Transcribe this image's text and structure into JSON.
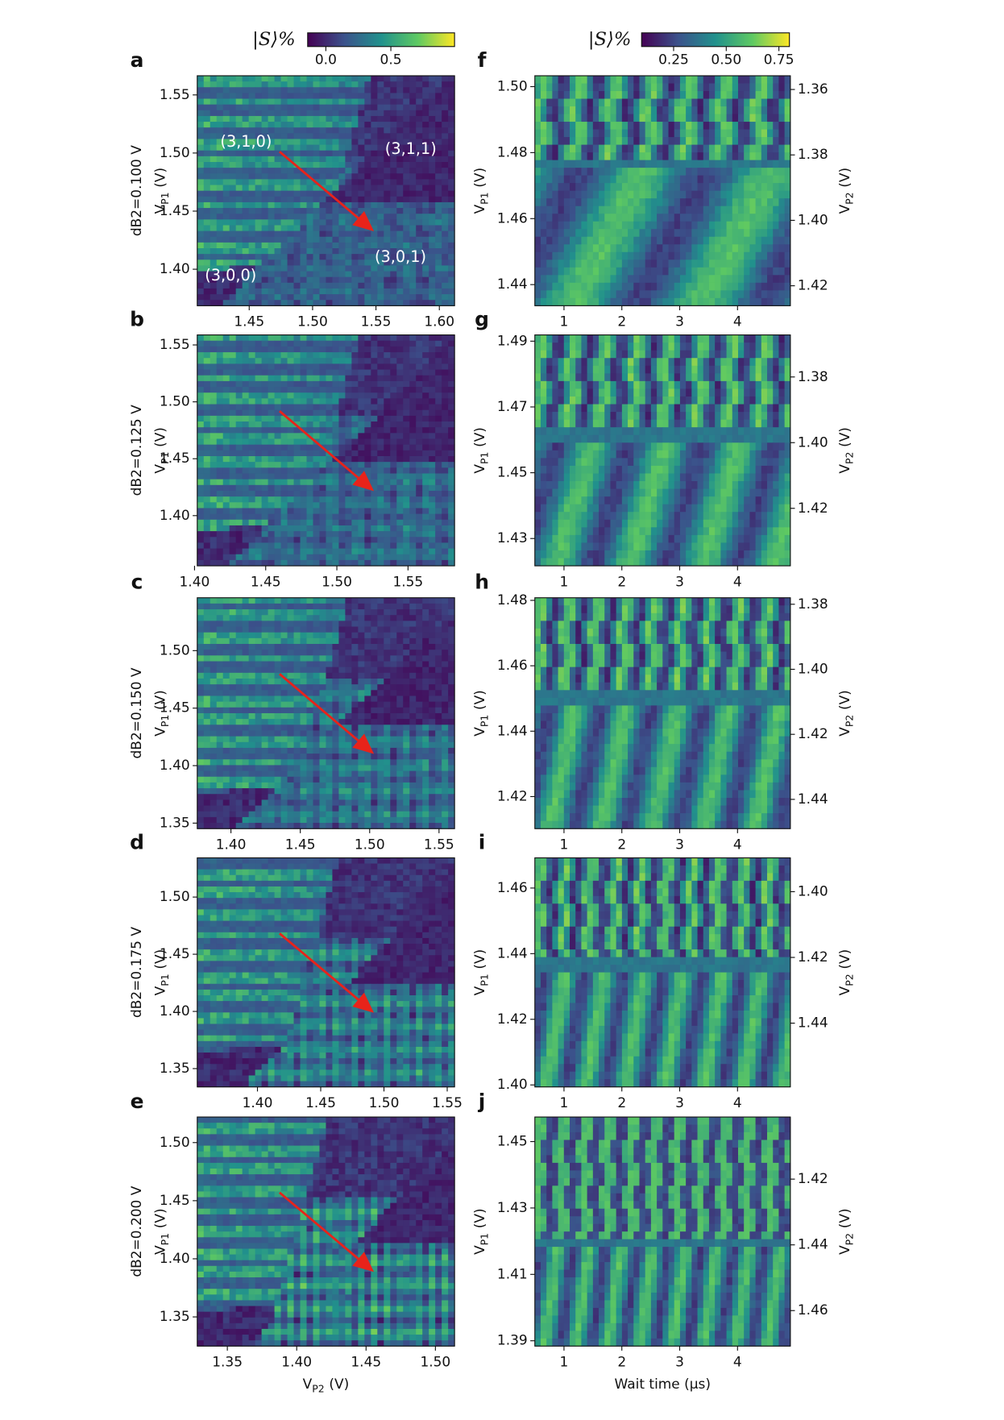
{
  "colorbars": [
    {
      "label": "|S⟩%",
      "clim": [
        -0.14,
        0.99
      ],
      "ticks": [
        {
          "value": 0,
          "label": "0.0"
        },
        0.5
      ]
    },
    {
      "label": "|S⟩%",
      "clim": [
        0.098,
        0.8
      ],
      "ticks": [
        0.25,
        {
          "value": 0.5,
          "label": "0.50"
        },
        0.75
      ]
    }
  ],
  "chart_data": [
    {
      "type": "heatmap",
      "panel_label": "a",
      "side_label": "dB2=0.100 V",
      "ylabel": [
        "V",
        "P1",
        "(V)"
      ],
      "xlim": [
        1.409,
        1.612
      ],
      "xticks": [
        1.45,
        {
          "value": 1.5,
          "label": "1.50"
        },
        1.55,
        {
          "value": 1.6,
          "label": "1.60"
        }
      ],
      "ylim": [
        1.3686,
        1.5665
      ],
      "yticks": [
        1.55,
        {
          "value": 1.5,
          "label": "1.50"
        },
        1.45,
        {
          "value": 1.4,
          "label": "1.40"
        }
      ],
      "annotations": [
        "(3,1,0)",
        "(3,1,1)",
        "(3,0,1)",
        "(3,0,0)"
      ]
    },
    {
      "type": "heatmap",
      "panel_label": "b",
      "side_label": "dB2=0.125 V",
      "ylabel": [
        "V",
        "P1",
        "(V)"
      ],
      "xlim": [
        1.4019,
        1.5827
      ],
      "xticks": [
        {
          "value": 1.4,
          "label": "1.40"
        },
        1.45,
        {
          "value": 1.5,
          "label": "1.50"
        },
        1.55
      ],
      "ylim": [
        1.3559,
        1.5588
      ],
      "yticks": [
        1.55,
        {
          "value": 1.5,
          "label": "1.50"
        },
        1.45,
        {
          "value": 1.4,
          "label": "1.40"
        }
      ]
    },
    {
      "type": "heatmap",
      "panel_label": "c",
      "side_label": "dB2=0.150 V",
      "ylabel": [
        "V",
        "P1",
        "(V)"
      ],
      "xlim": [
        1.3757,
        1.5612
      ],
      "xticks": [
        {
          "value": 1.4,
          "label": "1.40"
        },
        1.45,
        {
          "value": 1.5,
          "label": "1.50"
        },
        1.55
      ],
      "ylim": [
        1.3452,
        1.546
      ],
      "yticks": [
        {
          "value": 1.5,
          "label": "1.50"
        },
        1.45,
        {
          "value": 1.4,
          "label": "1.40"
        },
        1.35
      ]
    },
    {
      "type": "heatmap",
      "panel_label": "d",
      "side_label": "dB2=0.175 V",
      "ylabel": [
        "V",
        "P1",
        "(V)"
      ],
      "xlim": [
        1.3524,
        1.5558
      ],
      "xticks": [
        {
          "value": 1.4,
          "label": "1.40"
        },
        1.45,
        {
          "value": 1.5,
          "label": "1.50"
        },
        1.55
      ],
      "ylim": [
        1.334,
        1.5343
      ],
      "yticks": [
        {
          "value": 1.5,
          "label": "1.50"
        },
        1.45,
        {
          "value": 1.4,
          "label": "1.40"
        },
        1.35
      ]
    },
    {
      "type": "heatmap",
      "panel_label": "e",
      "side_label": "dB2=0.200 V",
      "ylabel": [
        "V",
        "P1",
        "(V)"
      ],
      "xlabel": [
        "V",
        "P2",
        "(V)"
      ],
      "xlim": [
        1.3283,
        1.5138
      ],
      "xticks": [
        1.35,
        {
          "value": 1.4,
          "label": "1.40"
        },
        1.45,
        {
          "value": 1.5,
          "label": "1.50"
        }
      ],
      "ylim": [
        1.3249,
        1.522
      ],
      "yticks": [
        {
          "value": 1.5,
          "label": "1.50"
        },
        1.45,
        {
          "value": 1.4,
          "label": "1.40"
        },
        1.35
      ]
    },
    {
      "type": "heatmap",
      "panel_label": "f",
      "ylabel": [
        "V",
        "P1",
        "(V)"
      ],
      "y2label": [
        "V",
        "P2",
        "(V)"
      ],
      "xlim": [
        0.496,
        4.913
      ],
      "xticks": [
        1,
        2,
        3,
        4
      ],
      "ylim": [
        1.4336,
        1.5033
      ],
      "yticks": [
        {
          "value": 1.5,
          "label": "1.50"
        },
        1.48,
        1.46,
        1.44
      ],
      "y2lim": [
        1.4261,
        1.3558
      ],
      "y2ticks": [
        1.36,
        1.38,
        {
          "value": 1.4,
          "label": "1.40"
        },
        1.42
      ]
    },
    {
      "type": "heatmap",
      "panel_label": "g",
      "ylabel": [
        "V",
        "P1",
        "(V)"
      ],
      "y2label": [
        "V",
        "P2",
        "(V)"
      ],
      "xlim": [
        0.496,
        4.913
      ],
      "xticks": [
        1,
        2,
        3,
        4
      ],
      "ylim": [
        1.4217,
        1.4919
      ],
      "yticks": [
        1.49,
        1.47,
        1.45,
        1.43
      ],
      "y2lim": [
        1.4375,
        1.3672
      ],
      "y2ticks": [
        1.38,
        {
          "value": 1.4,
          "label": "1.40"
        },
        1.42
      ]
    },
    {
      "type": "heatmap",
      "panel_label": "h",
      "ylabel": [
        "V",
        "P1",
        "(V)"
      ],
      "y2label": [
        "V",
        "P2",
        "(V)"
      ],
      "xlim": [
        0.496,
        4.913
      ],
      "xticks": [
        1,
        2,
        3,
        4
      ],
      "ylim": [
        1.4102,
        1.4808
      ],
      "yticks": [
        1.48,
        1.46,
        1.44,
        1.42
      ],
      "y2lim": [
        1.449,
        1.378
      ],
      "y2ticks": [
        1.38,
        {
          "value": 1.4,
          "label": "1.40"
        },
        1.42,
        1.44
      ]
    },
    {
      "type": "heatmap",
      "panel_label": "i",
      "ylabel": [
        "V",
        "P1",
        "(V)"
      ],
      "y2label": [
        "V",
        "P2",
        "(V)"
      ],
      "xlim": [
        0.496,
        4.913
      ],
      "xticks": [
        1,
        2,
        3,
        4
      ],
      "ylim": [
        1.3994,
        1.4692
      ],
      "yticks": [
        1.46,
        1.44,
        1.42,
        {
          "value": 1.4,
          "label": "1.40"
        }
      ],
      "y2lim": [
        1.4594,
        1.3897
      ],
      "y2ticks": [
        {
          "value": 1.4,
          "label": "1.40"
        },
        1.42,
        1.44
      ]
    },
    {
      "type": "heatmap",
      "panel_label": "j",
      "ylabel": [
        "V",
        "P1",
        "(V)"
      ],
      "y2label": [
        "V",
        "P2",
        "(V)"
      ],
      "xlabel": "Wait time (μs)",
      "xlim": [
        0.496,
        4.913
      ],
      "xticks": [
        1,
        2,
        3,
        4
      ],
      "ylim": [
        1.3884,
        1.4574
      ],
      "yticks": [
        1.45,
        1.43,
        1.41,
        1.39
      ],
      "y2lim": [
        1.4708,
        1.4011
      ],
      "y2ticks": [
        1.42,
        1.44,
        1.46
      ]
    }
  ]
}
